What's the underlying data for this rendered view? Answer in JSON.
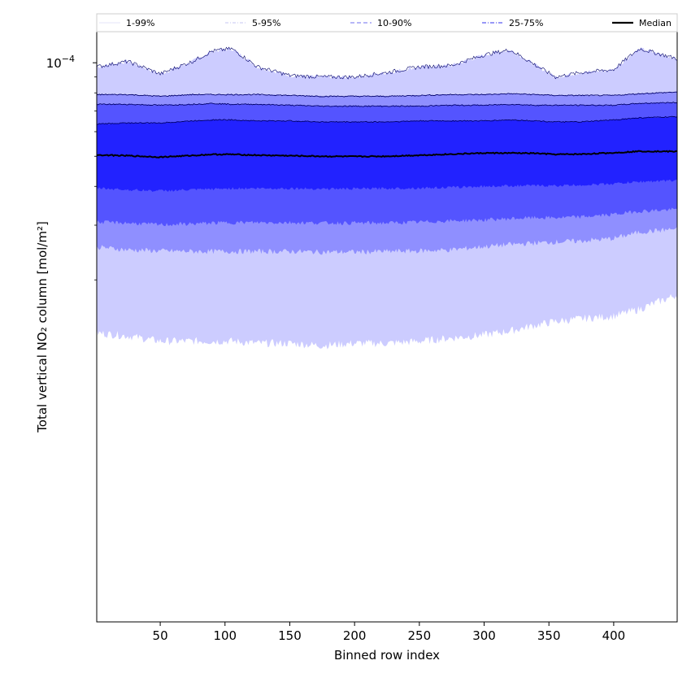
{
  "chart_data": {
    "type": "area",
    "xlabel": "Binned row index",
    "ylabel": "Total vertical NO₂ column [mol/m²]",
    "xlim": [
      1,
      449
    ],
    "ylim_log10": [
      -5.8,
      -3.9
    ],
    "yscale": "log",
    "x_ticks": [
      50,
      100,
      150,
      200,
      250,
      300,
      350,
      400
    ],
    "y_tick_labels": [
      {
        "label_base": "10",
        "label_exp": "−4",
        "value": 0.0001
      }
    ],
    "y_minor_ticks": [
      9e-05,
      8e-05,
      7e-05,
      6e-05,
      5e-05,
      4e-05,
      3e-05,
      2e-05
    ],
    "legend_position": "top, spanning full width",
    "legend": [
      {
        "label": "1-99%",
        "color": "#dcdcf8",
        "style": "solid-thin"
      },
      {
        "label": "5-95%",
        "color": "#b4b4ee",
        "style": "dashdot-thin"
      },
      {
        "label": "10-90%",
        "color": "#8c8cf2",
        "style": "dashed"
      },
      {
        "label": "25-75%",
        "color": "#5a5af0",
        "style": "dashdot"
      },
      {
        "label": "Median",
        "color": "#000000",
        "style": "solid-thick"
      }
    ],
    "band_colors": {
      "p1_99": "#ccccff",
      "p5_95": "#8f8fff",
      "p10_90": "#5454ff",
      "p25_75": "#2222ff"
    },
    "x": [
      1,
      25,
      50,
      75,
      90,
      105,
      125,
      150,
      175,
      200,
      225,
      250,
      275,
      300,
      320,
      340,
      355,
      375,
      400,
      420,
      449
    ],
    "series": [
      {
        "name": "1-99%",
        "lower": [
          1.35e-05,
          1.32e-05,
          1.27e-05,
          1.27e-05,
          1.27e-05,
          1.27e-05,
          1.25e-05,
          1.25e-05,
          1.23e-05,
          1.25e-05,
          1.25e-05,
          1.27e-05,
          1.3e-05,
          1.33e-05,
          1.37e-05,
          1.43e-05,
          1.47e-05,
          1.5e-05,
          1.53e-05,
          1.61e-05,
          1.79e-05
        ],
        "upper": [
          9.7e-05,
          0.000101,
          9.2e-05,
          0.000101,
          0.000109,
          0.000111,
          9.7e-05,
          9.1e-05,
          9e-05,
          9e-05,
          9.3e-05,
          9.7e-05,
          9.8e-05,
          0.000106,
          0.00011,
          9.8e-05,
          9e-05,
          9.3e-05,
          9.5e-05,
          0.000111,
          0.000103
        ]
      },
      {
        "name": "5-95%",
        "lower": [
          2.55e-05,
          2.5e-05,
          2.48e-05,
          2.47e-05,
          2.47e-05,
          2.47e-05,
          2.47e-05,
          2.47e-05,
          2.46e-05,
          2.46e-05,
          2.47e-05,
          2.48e-05,
          2.5e-05,
          2.56e-05,
          2.6e-05,
          2.63e-05,
          2.65e-05,
          2.67e-05,
          2.72e-05,
          2.85e-05,
          2.92e-05
        ],
        "upper": [
          7.9e-05,
          7.9e-05,
          7.8e-05,
          7.9e-05,
          7.9e-05,
          7.9e-05,
          7.9e-05,
          7.85e-05,
          7.8e-05,
          7.8e-05,
          7.8e-05,
          7.85e-05,
          7.9e-05,
          7.9e-05,
          7.95e-05,
          7.9e-05,
          7.85e-05,
          7.85e-05,
          7.85e-05,
          7.95e-05,
          8.05e-05
        ]
      },
      {
        "name": "10-90%",
        "lower": [
          3.07e-05,
          3.05e-05,
          3.01e-05,
          3.03e-05,
          3.05e-05,
          3.06e-05,
          3.06e-05,
          3.06e-05,
          3.05e-05,
          3.05e-05,
          3.05e-05,
          3.07e-05,
          3.1e-05,
          3.12e-05,
          3.15e-05,
          3.17e-05,
          3.17e-05,
          3.19e-05,
          3.25e-05,
          3.33e-05,
          3.37e-05
        ],
        "upper": [
          7.35e-05,
          7.35e-05,
          7.3e-05,
          7.35e-05,
          7.4e-05,
          7.35e-05,
          7.35e-05,
          7.3e-05,
          7.25e-05,
          7.25e-05,
          7.25e-05,
          7.25e-05,
          7.3e-05,
          7.3e-05,
          7.35e-05,
          7.3e-05,
          7.3e-05,
          7.3e-05,
          7.3e-05,
          7.4e-05,
          7.45e-05
        ]
      },
      {
        "name": "25-75%",
        "lower": [
          3.95e-05,
          3.9e-05,
          3.87e-05,
          3.9e-05,
          3.92e-05,
          3.94e-05,
          3.94e-05,
          3.94e-05,
          3.93e-05,
          3.93e-05,
          3.94e-05,
          3.95e-05,
          3.97e-05,
          4e-05,
          4.02e-05,
          4.02e-05,
          4.02e-05,
          4.04e-05,
          4.08e-05,
          4.14e-05,
          4.18e-05
        ],
        "upper": [
          6.35e-05,
          6.4e-05,
          6.4e-05,
          6.5e-05,
          6.55e-05,
          6.55e-05,
          6.5e-05,
          6.5e-05,
          6.45e-05,
          6.45e-05,
          6.45e-05,
          6.5e-05,
          6.5e-05,
          6.5e-05,
          6.55e-05,
          6.5e-05,
          6.45e-05,
          6.45e-05,
          6.55e-05,
          6.65e-05,
          6.7e-05
        ]
      },
      {
        "name": "Median",
        "values": [
          5.05e-05,
          5.02e-05,
          4.97e-05,
          5.03e-05,
          5.07e-05,
          5.07e-05,
          5.04e-05,
          5.02e-05,
          5e-05,
          4.99e-05,
          5e-05,
          5.04e-05,
          5.08e-05,
          5.12e-05,
          5.12e-05,
          5.11e-05,
          5.07e-05,
          5.08e-05,
          5.13e-05,
          5.19e-05,
          5.18e-05
        ]
      }
    ]
  }
}
